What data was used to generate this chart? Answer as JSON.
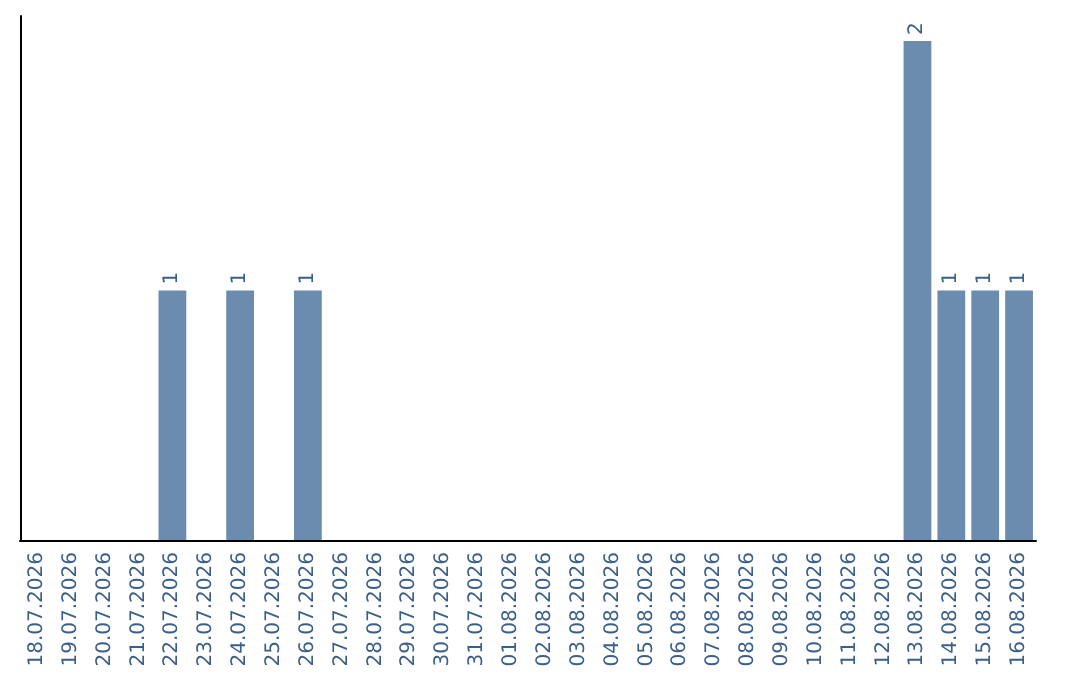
{
  "chart_data": {
    "type": "bar",
    "categories": [
      "18.07.2026",
      "19.07.2026",
      "20.07.2026",
      "21.07.2026",
      "22.07.2026",
      "23.07.2026",
      "24.07.2026",
      "25.07.2026",
      "26.07.2026",
      "27.07.2026",
      "28.07.2026",
      "29.07.2026",
      "30.07.2026",
      "31.07.2026",
      "01.08.2026",
      "02.08.2026",
      "03.08.2026",
      "04.08.2026",
      "05.08.2026",
      "06.08.2026",
      "07.08.2026",
      "08.08.2026",
      "09.08.2026",
      "10.08.2026",
      "11.08.2026",
      "12.08.2026",
      "13.08.2026",
      "14.08.2026",
      "15.08.2026",
      "16.08.2026"
    ],
    "values": [
      0,
      0,
      0,
      0,
      1,
      0,
      1,
      0,
      1,
      0,
      0,
      0,
      0,
      0,
      0,
      0,
      0,
      0,
      0,
      0,
      0,
      0,
      0,
      0,
      0,
      0,
      2,
      1,
      1,
      1
    ],
    "value_labels": [
      null,
      null,
      null,
      null,
      "1",
      null,
      "1",
      null,
      "1",
      null,
      null,
      null,
      null,
      null,
      null,
      null,
      null,
      null,
      null,
      null,
      null,
      null,
      null,
      null,
      null,
      null,
      "2",
      "1",
      "1",
      "1"
    ],
    "color": "#6b8cae",
    "ylim": [
      0,
      2.1
    ],
    "tick_labels": "x"
  }
}
